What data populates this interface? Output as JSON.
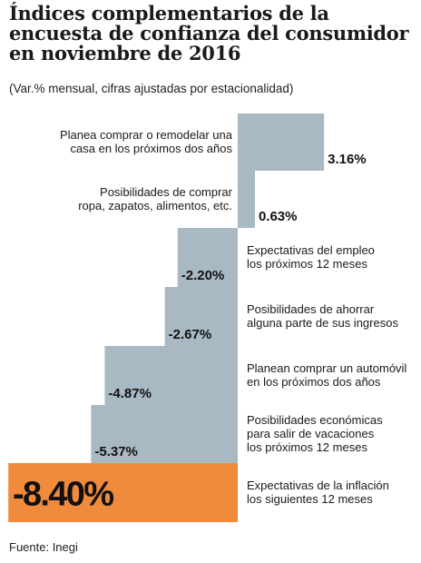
{
  "title": "Índices complementarios de la encuesta de confianza del consumidor en noviembre de 2016",
  "subtitle": "(Var.% mensual, cifras ajustadas por estacionalidad)",
  "source": "Fuente: Inegi",
  "chart_data": {
    "type": "bar",
    "orientation": "horizontal",
    "title": "Índices complementarios de la encuesta de confianza del consumidor en noviembre de 2016",
    "subtitle": "(Var.% mensual, cifras ajustadas por estacionalidad)",
    "unit": "%",
    "categories": [
      "Planea comprar o remodelar una casa en los próximos dos años",
      "Posibilidades de comprar ropa, zapatos, alimentos, etc.",
      "Expectativas del empleo los próximos 12 meses",
      "Posibilidades de ahorrar alguna parte de sus ingresos",
      "Planean comprar un automóvil en los próximos dos años",
      "Posibilidades económicas para salir de vacaciones los próximos 12 meses",
      "Expectativas de la inflación los siguientes 12 meses"
    ],
    "label_lines": [
      [
        "Planea comprar o remodelar una",
        "casa en los próximos dos años"
      ],
      [
        "Posibilidades de comprar",
        "ropa, zapatos, alimentos, etc."
      ],
      [
        "Expectativas del empleo",
        "los próximos 12 meses"
      ],
      [
        "Posibilidades de ahorrar",
        "alguna parte de sus ingresos"
      ],
      [
        "Planean comprar un automóvil",
        "en los próximos dos años"
      ],
      [
        "Posibilidades económicas",
        "para salir de vacaciones",
        "los próximos 12 meses"
      ],
      [
        "Expectativas de la inflación",
        "los siguientes 12 meses"
      ]
    ],
    "values": [
      3.16,
      0.63,
      -2.2,
      -2.67,
      -4.87,
      -5.37,
      -8.4
    ],
    "value_labels": [
      "3.16%",
      "0.63%",
      "-2.20%",
      "-2.67%",
      "-4.87%",
      "-5.37%",
      "-8.40%"
    ],
    "colors": {
      "bar": "#a9b9c3",
      "highlight": "#f08a3c"
    }
  }
}
